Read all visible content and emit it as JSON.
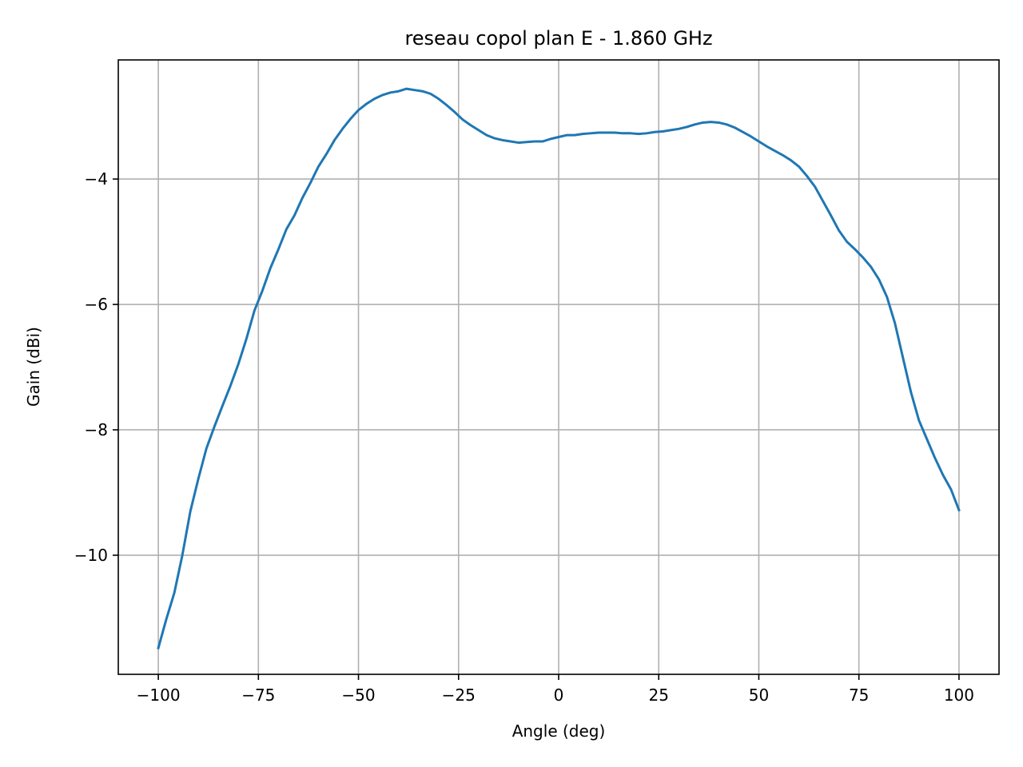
{
  "chart_data": {
    "type": "line",
    "title": "reseau copol plan E - 1.860 GHz",
    "xlabel": "Angle (deg)",
    "ylabel": "Gain (dBi)",
    "xlim": [
      -110,
      110
    ],
    "ylim": [
      -11.9,
      -2.1
    ],
    "grid": true,
    "xticks": [
      {
        "value": -100,
        "label": "−100"
      },
      {
        "value": -75,
        "label": "−75"
      },
      {
        "value": -50,
        "label": "−50"
      },
      {
        "value": -25,
        "label": "−25"
      },
      {
        "value": 0,
        "label": "0"
      },
      {
        "value": 25,
        "label": "25"
      },
      {
        "value": 50,
        "label": "50"
      },
      {
        "value": 75,
        "label": "75"
      },
      {
        "value": 100,
        "label": "100"
      }
    ],
    "yticks": [
      {
        "value": -10,
        "label": "−10"
      },
      {
        "value": -8,
        "label": "−8"
      },
      {
        "value": -6,
        "label": "−6"
      },
      {
        "value": -4,
        "label": "−4"
      }
    ],
    "series": [
      {
        "color": "#1f77b4",
        "x": [
          -100,
          -98,
          -96,
          -94,
          -92,
          -90,
          -88,
          -86,
          -84,
          -82,
          -80,
          -78,
          -76,
          -74,
          -72,
          -70,
          -68,
          -66,
          -64,
          -62,
          -60,
          -58,
          -56,
          -54,
          -52,
          -50,
          -48,
          -46,
          -44,
          -42,
          -40,
          -38,
          -36,
          -34,
          -32,
          -30,
          -28,
          -26,
          -24,
          -22,
          -20,
          -18,
          -16,
          -14,
          -12,
          -10,
          -8,
          -6,
          -4,
          -2,
          0,
          2,
          4,
          6,
          8,
          10,
          12,
          14,
          16,
          18,
          20,
          22,
          24,
          26,
          28,
          30,
          32,
          34,
          36,
          38,
          40,
          42,
          44,
          46,
          48,
          50,
          52,
          54,
          56,
          58,
          60,
          62,
          64,
          66,
          68,
          70,
          72,
          74,
          76,
          78,
          80,
          82,
          84,
          86,
          88,
          90,
          92,
          94,
          96,
          98,
          100
        ],
        "y": [
          -11.48,
          -11.02,
          -10.6,
          -10.0,
          -9.3,
          -8.78,
          -8.3,
          -7.95,
          -7.62,
          -7.3,
          -6.95,
          -6.55,
          -6.1,
          -5.78,
          -5.42,
          -5.12,
          -4.8,
          -4.58,
          -4.3,
          -4.06,
          -3.8,
          -3.6,
          -3.38,
          -3.2,
          -3.04,
          -2.9,
          -2.8,
          -2.72,
          -2.66,
          -2.62,
          -2.6,
          -2.56,
          -2.58,
          -2.6,
          -2.64,
          -2.72,
          -2.82,
          -2.93,
          -3.05,
          -3.14,
          -3.22,
          -3.3,
          -3.35,
          -3.38,
          -3.4,
          -3.42,
          -3.41,
          -3.4,
          -3.4,
          -3.36,
          -3.33,
          -3.3,
          -3.3,
          -3.28,
          -3.27,
          -3.26,
          -3.26,
          -3.26,
          -3.27,
          -3.27,
          -3.28,
          -3.27,
          -3.25,
          -3.24,
          -3.22,
          -3.2,
          -3.17,
          -3.13,
          -3.1,
          -3.09,
          -3.1,
          -3.13,
          -3.18,
          -3.25,
          -3.32,
          -3.4,
          -3.48,
          -3.55,
          -3.62,
          -3.7,
          -3.8,
          -3.95,
          -4.12,
          -4.35,
          -4.58,
          -4.82,
          -5.0,
          -5.12,
          -5.25,
          -5.4,
          -5.6,
          -5.88,
          -6.3,
          -6.85,
          -7.4,
          -7.85,
          -8.15,
          -8.45,
          -8.72,
          -8.95,
          -9.28
        ]
      }
    ]
  }
}
